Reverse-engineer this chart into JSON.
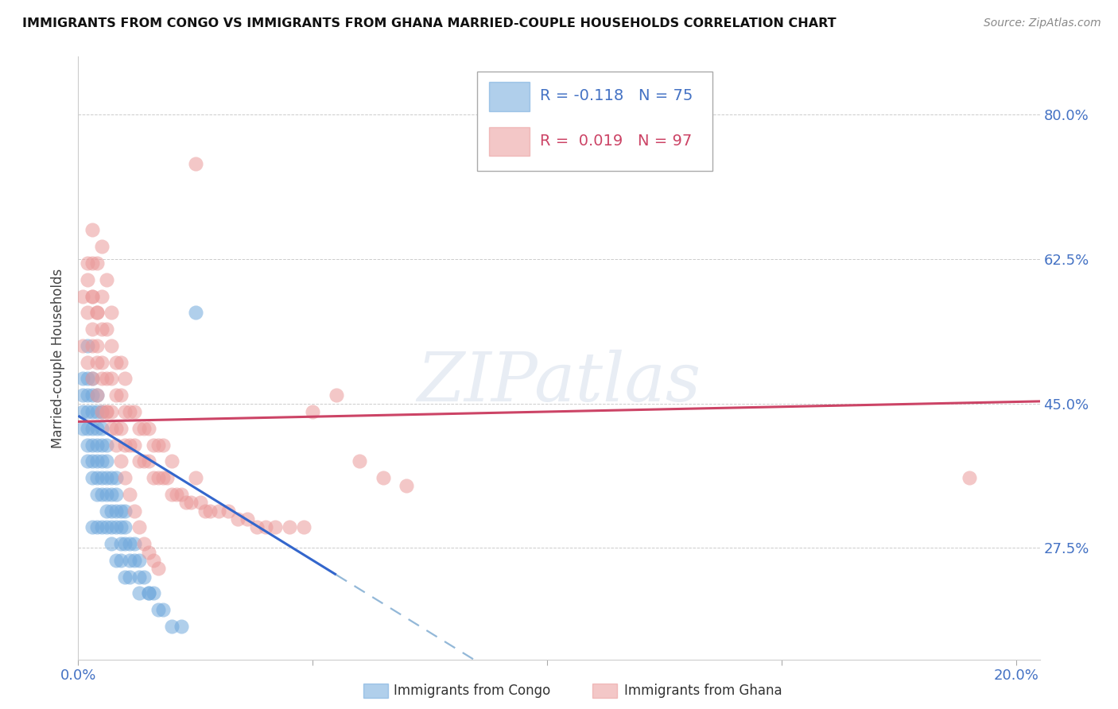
{
  "title": "IMMIGRANTS FROM CONGO VS IMMIGRANTS FROM GHANA MARRIED-COUPLE HOUSEHOLDS CORRELATION CHART",
  "source": "Source: ZipAtlas.com",
  "ylabel": "Married-couple Households",
  "xlim": [
    0.0,
    0.205
  ],
  "ylim": [
    0.14,
    0.87
  ],
  "yticks": [
    0.275,
    0.45,
    0.625,
    0.8
  ],
  "right_ytick_labels": [
    "27.5%",
    "45.0%",
    "62.5%",
    "80.0%"
  ],
  "xticks": [
    0.0,
    0.05,
    0.1,
    0.15,
    0.2
  ],
  "xtick_labels": [
    "0.0%",
    "",
    "",
    "",
    "20.0%"
  ],
  "watermark": "ZIPatlas",
  "congo_R": -0.118,
  "congo_N": 75,
  "ghana_R": 0.019,
  "ghana_N": 97,
  "congo_color": "#6fa8dc",
  "ghana_color": "#ea9999",
  "congo_line_color": "#3366cc",
  "congo_dash_color": "#93b8d8",
  "ghana_line_color": "#cc4466",
  "congo_line_solid_end": 0.055,
  "congo_line_x0": 0.0,
  "congo_line_y0": 0.435,
  "congo_line_slope": -3.5,
  "ghana_line_x0": 0.0,
  "ghana_line_y0": 0.428,
  "ghana_line_slope": 0.12,
  "congo_x": [
    0.001,
    0.001,
    0.001,
    0.001,
    0.002,
    0.002,
    0.002,
    0.002,
    0.002,
    0.002,
    0.002,
    0.003,
    0.003,
    0.003,
    0.003,
    0.003,
    0.003,
    0.003,
    0.004,
    0.004,
    0.004,
    0.004,
    0.004,
    0.004,
    0.004,
    0.005,
    0.005,
    0.005,
    0.005,
    0.005,
    0.005,
    0.006,
    0.006,
    0.006,
    0.006,
    0.006,
    0.007,
    0.007,
    0.007,
    0.007,
    0.008,
    0.008,
    0.008,
    0.008,
    0.009,
    0.009,
    0.009,
    0.01,
    0.01,
    0.01,
    0.011,
    0.011,
    0.012,
    0.012,
    0.013,
    0.013,
    0.014,
    0.015,
    0.016,
    0.017,
    0.018,
    0.02,
    0.022,
    0.025,
    0.003,
    0.004,
    0.005,
    0.006,
    0.007,
    0.008,
    0.009,
    0.01,
    0.011,
    0.013,
    0.015
  ],
  "congo_y": [
    0.42,
    0.44,
    0.46,
    0.48,
    0.38,
    0.4,
    0.42,
    0.44,
    0.46,
    0.48,
    0.52,
    0.36,
    0.38,
    0.4,
    0.42,
    0.44,
    0.46,
    0.48,
    0.34,
    0.36,
    0.38,
    0.4,
    0.42,
    0.44,
    0.46,
    0.34,
    0.36,
    0.38,
    0.4,
    0.42,
    0.44,
    0.32,
    0.34,
    0.36,
    0.38,
    0.4,
    0.3,
    0.32,
    0.34,
    0.36,
    0.3,
    0.32,
    0.34,
    0.36,
    0.28,
    0.3,
    0.32,
    0.28,
    0.3,
    0.32,
    0.26,
    0.28,
    0.26,
    0.28,
    0.24,
    0.26,
    0.24,
    0.22,
    0.22,
    0.2,
    0.2,
    0.18,
    0.18,
    0.56,
    0.3,
    0.3,
    0.3,
    0.3,
    0.28,
    0.26,
    0.26,
    0.24,
    0.24,
    0.22,
    0.22
  ],
  "ghana_x": [
    0.001,
    0.001,
    0.002,
    0.002,
    0.002,
    0.003,
    0.003,
    0.003,
    0.003,
    0.003,
    0.004,
    0.004,
    0.004,
    0.004,
    0.005,
    0.005,
    0.005,
    0.005,
    0.005,
    0.006,
    0.006,
    0.006,
    0.006,
    0.007,
    0.007,
    0.007,
    0.007,
    0.008,
    0.008,
    0.008,
    0.009,
    0.009,
    0.009,
    0.01,
    0.01,
    0.01,
    0.011,
    0.011,
    0.012,
    0.012,
    0.013,
    0.013,
    0.014,
    0.014,
    0.015,
    0.015,
    0.016,
    0.016,
    0.017,
    0.017,
    0.018,
    0.018,
    0.019,
    0.02,
    0.02,
    0.021,
    0.022,
    0.023,
    0.024,
    0.025,
    0.026,
    0.027,
    0.028,
    0.03,
    0.032,
    0.034,
    0.036,
    0.038,
    0.04,
    0.042,
    0.045,
    0.048,
    0.05,
    0.055,
    0.06,
    0.065,
    0.07,
    0.003,
    0.004,
    0.005,
    0.006,
    0.007,
    0.008,
    0.009,
    0.01,
    0.011,
    0.012,
    0.013,
    0.014,
    0.015,
    0.016,
    0.017,
    0.025,
    0.19,
    0.002,
    0.003,
    0.004
  ],
  "ghana_y": [
    0.52,
    0.58,
    0.5,
    0.56,
    0.62,
    0.48,
    0.52,
    0.58,
    0.62,
    0.66,
    0.46,
    0.52,
    0.56,
    0.62,
    0.44,
    0.5,
    0.54,
    0.58,
    0.64,
    0.44,
    0.48,
    0.54,
    0.6,
    0.44,
    0.48,
    0.52,
    0.56,
    0.42,
    0.46,
    0.5,
    0.42,
    0.46,
    0.5,
    0.4,
    0.44,
    0.48,
    0.4,
    0.44,
    0.4,
    0.44,
    0.38,
    0.42,
    0.38,
    0.42,
    0.38,
    0.42,
    0.36,
    0.4,
    0.36,
    0.4,
    0.36,
    0.4,
    0.36,
    0.34,
    0.38,
    0.34,
    0.34,
    0.33,
    0.33,
    0.74,
    0.33,
    0.32,
    0.32,
    0.32,
    0.32,
    0.31,
    0.31,
    0.3,
    0.3,
    0.3,
    0.3,
    0.3,
    0.44,
    0.46,
    0.38,
    0.36,
    0.35,
    0.54,
    0.5,
    0.48,
    0.44,
    0.42,
    0.4,
    0.38,
    0.36,
    0.34,
    0.32,
    0.3,
    0.28,
    0.27,
    0.26,
    0.25,
    0.36,
    0.36,
    0.6,
    0.58,
    0.56
  ]
}
